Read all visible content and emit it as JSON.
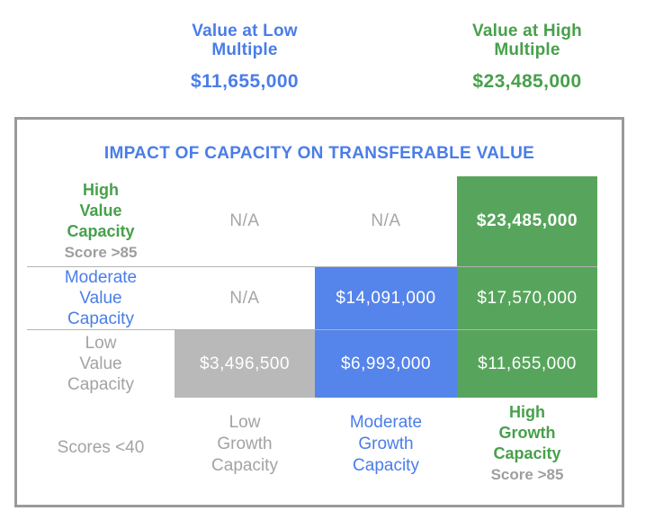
{
  "colors": {
    "blue_text": "#4a7de8",
    "green_text": "#47a04b",
    "green_cell_bg": "#57a55c",
    "blue_cell_bg": "#5584ea",
    "gray_cell_bg": "#b9b9b9",
    "gray_text": "#a3a3a3",
    "box_border": "#9a9a9a"
  },
  "summary": {
    "low": {
      "line1": "Value at Low",
      "line2": "Multiple",
      "value": "$11,655,000"
    },
    "high": {
      "line1": "Value at High",
      "line2": "Multiple",
      "value": "$23,485,000"
    }
  },
  "matrix": {
    "title": "IMPACT OF CAPACITY ON TRANSFERABLE VALUE",
    "rows": [
      {
        "label_lines": [
          "High",
          "Value",
          "Capacity"
        ],
        "label_note": "Score >85",
        "cells": [
          {
            "text": "N/A"
          },
          {
            "text": "N/A"
          },
          {
            "text": "$23,485,000"
          }
        ]
      },
      {
        "label_lines": [
          "Moderate",
          "Value",
          "Capacity"
        ],
        "cells": [
          {
            "text": "N/A"
          },
          {
            "text": "$14,091,000"
          },
          {
            "text": "$17,570,000"
          }
        ]
      },
      {
        "label_lines": [
          "Low",
          "Value",
          "Capacity"
        ],
        "cells": [
          {
            "text": "$3,496,500"
          },
          {
            "text": "$6,993,000"
          },
          {
            "text": "$11,655,000"
          }
        ]
      }
    ],
    "footer": {
      "scores_label": "Scores <40",
      "low_growth_lines": [
        "Low",
        "Growth",
        "Capacity"
      ],
      "moderate_growth_lines": [
        "Moderate",
        "Growth",
        "Capacity"
      ],
      "high_growth_lines": [
        "High",
        "Growth",
        "Capacity"
      ],
      "high_growth_note": "Score >85"
    }
  },
  "chart_data": {
    "type": "table",
    "title": "IMPACT OF CAPACITY ON TRANSFERABLE VALUE",
    "row_labels": [
      "High Value Capacity (Score >85)",
      "Moderate Value Capacity",
      "Low Value Capacity"
    ],
    "column_labels": [
      "Low Growth Capacity (Scores <40)",
      "Moderate Growth Capacity",
      "High Growth Capacity (Score >85)"
    ],
    "cells": [
      [
        "N/A",
        "N/A",
        "$23,485,000"
      ],
      [
        "N/A",
        "$14,091,000",
        "$17,570,000"
      ],
      [
        "$3,496,500",
        "$6,993,000",
        "$11,655,000"
      ]
    ],
    "annotations": {
      "value_at_low_multiple": "$11,655,000",
      "value_at_high_multiple": "$23,485,000"
    }
  }
}
